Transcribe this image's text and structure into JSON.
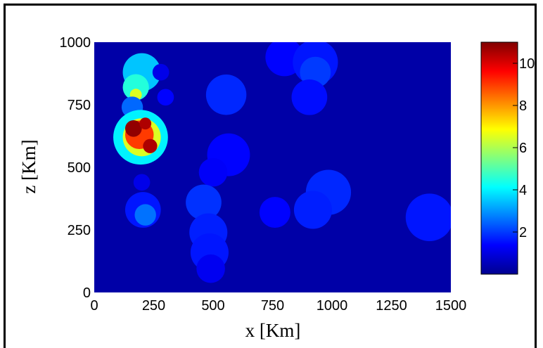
{
  "chart_data": {
    "type": "heatmap",
    "title": "",
    "xlabel": "x [Km]",
    "ylabel": "z [Km]",
    "xlim": [
      0,
      1500
    ],
    "ylim": [
      0,
      1000
    ],
    "xticks": [
      "0",
      "250",
      "500",
      "750",
      "1000",
      "1250",
      "1500"
    ],
    "yticks": [
      "0",
      "250",
      "500",
      "750",
      "1000"
    ],
    "colorbar": {
      "min": 0,
      "max": 11,
      "ticks": [
        "2",
        "4",
        "6",
        "8",
        "10"
      ]
    },
    "background_value": 0.3,
    "blobs": [
      {
        "x": 200,
        "z": 880,
        "r": 80,
        "v": 3.5
      },
      {
        "x": 175,
        "z": 820,
        "r": 55,
        "v": 4.5
      },
      {
        "x": 175,
        "z": 790,
        "r": 25,
        "v": 6.5
      },
      {
        "x": 160,
        "z": 740,
        "r": 45,
        "v": 2.5
      },
      {
        "x": 195,
        "z": 620,
        "r": 115,
        "v": 4.0
      },
      {
        "x": 200,
        "z": 620,
        "r": 80,
        "v": 6.5
      },
      {
        "x": 190,
        "z": 630,
        "r": 60,
        "v": 9.0
      },
      {
        "x": 165,
        "z": 655,
        "r": 35,
        "v": 10.8
      },
      {
        "x": 235,
        "z": 585,
        "r": 30,
        "v": 10.5
      },
      {
        "x": 215,
        "z": 675,
        "r": 25,
        "v": 10.5
      },
      {
        "x": 300,
        "z": 780,
        "r": 35,
        "v": 1.4
      },
      {
        "x": 280,
        "z": 880,
        "r": 35,
        "v": 1.1
      },
      {
        "x": 200,
        "z": 440,
        "r": 35,
        "v": 1.1
      },
      {
        "x": 205,
        "z": 330,
        "r": 75,
        "v": 1.6
      },
      {
        "x": 215,
        "z": 310,
        "r": 45,
        "v": 2.6
      },
      {
        "x": 555,
        "z": 790,
        "r": 85,
        "v": 1.8
      },
      {
        "x": 565,
        "z": 550,
        "r": 90,
        "v": 1.4
      },
      {
        "x": 500,
        "z": 480,
        "r": 60,
        "v": 1.3
      },
      {
        "x": 460,
        "z": 360,
        "r": 75,
        "v": 1.9
      },
      {
        "x": 480,
        "z": 240,
        "r": 80,
        "v": 1.7
      },
      {
        "x": 485,
        "z": 160,
        "r": 80,
        "v": 1.6
      },
      {
        "x": 490,
        "z": 95,
        "r": 60,
        "v": 1.2
      },
      {
        "x": 800,
        "z": 940,
        "r": 80,
        "v": 1.4
      },
      {
        "x": 930,
        "z": 920,
        "r": 95,
        "v": 1.6
      },
      {
        "x": 930,
        "z": 880,
        "r": 65,
        "v": 2.0
      },
      {
        "x": 905,
        "z": 780,
        "r": 75,
        "v": 1.5
      },
      {
        "x": 985,
        "z": 400,
        "r": 95,
        "v": 1.8
      },
      {
        "x": 920,
        "z": 330,
        "r": 80,
        "v": 1.7
      },
      {
        "x": 760,
        "z": 320,
        "r": 65,
        "v": 1.4
      },
      {
        "x": 1410,
        "z": 300,
        "r": 100,
        "v": 1.6
      }
    ]
  }
}
